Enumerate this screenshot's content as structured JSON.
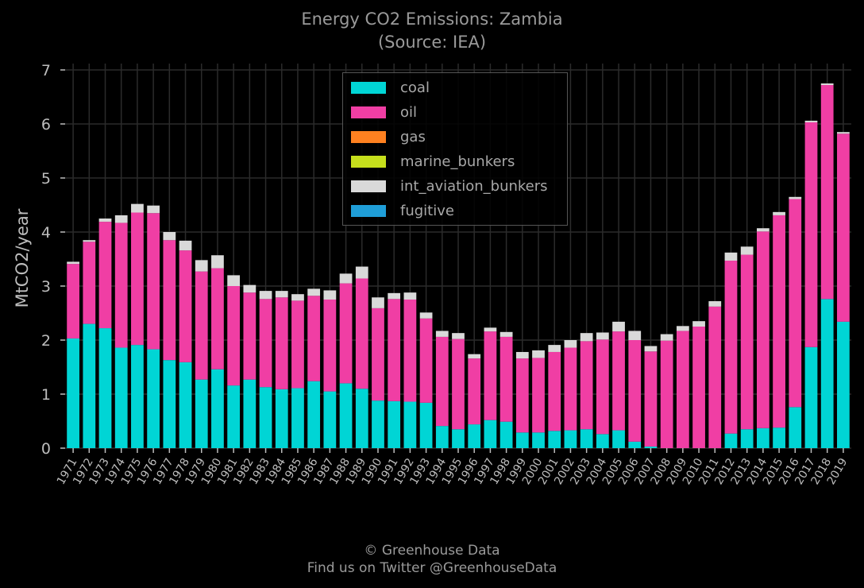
{
  "title_line1": "Energy CO2 Emissions: Zambia",
  "title_line2": "(Source: IEA)",
  "footer_line1": "© Greenhouse Data",
  "footer_line2": "Find us on Twitter @GreenhouseData",
  "colors": {
    "coal": "#00d5d5",
    "oil": "#f03ea4",
    "gas": "#ff8120",
    "marine_bunkers": "#c6df1c",
    "int_aviation_bunkers": "#d9d9d9",
    "fugitive": "#1f9ed8",
    "grid": "#2b2b2b",
    "axis_text": "#bdbdbd"
  },
  "chart_data": {
    "type": "bar",
    "stacked": true,
    "ylabel": "MtCO2/year",
    "ylim": [
      0,
      7
    ],
    "yticks": [
      0,
      1,
      2,
      3,
      4,
      5,
      6,
      7
    ],
    "grid": true,
    "legend_position": "top-center",
    "categories": [
      "1971",
      "1972",
      "1973",
      "1974",
      "1975",
      "1976",
      "1977",
      "1978",
      "1979",
      "1980",
      "1981",
      "1982",
      "1983",
      "1984",
      "1985",
      "1986",
      "1987",
      "1988",
      "1989",
      "1990",
      "1991",
      "1992",
      "1993",
      "1994",
      "1995",
      "1996",
      "1997",
      "1998",
      "1999",
      "2000",
      "2001",
      "2002",
      "2003",
      "2004",
      "2005",
      "2006",
      "2007",
      "2008",
      "2009",
      "2010",
      "2011",
      "2012",
      "2013",
      "2014",
      "2015",
      "2016",
      "2017",
      "2018",
      "2019"
    ],
    "series": [
      {
        "name": "coal",
        "values": [
          2.03,
          2.3,
          2.22,
          1.86,
          1.91,
          1.83,
          1.63,
          1.59,
          1.27,
          1.46,
          1.16,
          1.27,
          1.13,
          1.09,
          1.11,
          1.24,
          1.05,
          1.2,
          1.1,
          0.88,
          0.87,
          0.86,
          0.84,
          0.41,
          0.35,
          0.44,
          0.52,
          0.49,
          0.29,
          0.29,
          0.32,
          0.33,
          0.35,
          0.26,
          0.33,
          0.12,
          0.03,
          0.0,
          0.0,
          0.0,
          0.0,
          0.27,
          0.35,
          0.37,
          0.38,
          0.76,
          1.87,
          2.76,
          2.34
        ]
      },
      {
        "name": "oil",
        "values": [
          1.38,
          1.52,
          1.97,
          2.31,
          2.45,
          2.52,
          2.22,
          2.07,
          2.0,
          1.87,
          1.84,
          1.61,
          1.63,
          1.7,
          1.62,
          1.58,
          1.7,
          1.85,
          2.04,
          1.71,
          1.89,
          1.89,
          1.56,
          1.65,
          1.67,
          1.22,
          1.64,
          1.57,
          1.37,
          1.38,
          1.46,
          1.53,
          1.63,
          1.75,
          1.83,
          1.88,
          1.76,
          1.99,
          2.17,
          2.25,
          2.62,
          3.2,
          3.23,
          3.64,
          3.93,
          3.85,
          4.16,
          3.96,
          3.48
        ]
      },
      {
        "name": "gas",
        "values": [
          0,
          0,
          0,
          0,
          0,
          0,
          0,
          0,
          0,
          0,
          0,
          0,
          0,
          0,
          0,
          0,
          0,
          0,
          0,
          0,
          0,
          0,
          0,
          0,
          0,
          0,
          0,
          0,
          0,
          0,
          0,
          0,
          0,
          0,
          0,
          0,
          0,
          0,
          0,
          0,
          0,
          0,
          0,
          0,
          0,
          0,
          0,
          0,
          0
        ]
      },
      {
        "name": "marine_bunkers",
        "values": [
          0,
          0,
          0,
          0,
          0,
          0,
          0,
          0,
          0,
          0,
          0,
          0,
          0,
          0,
          0,
          0,
          0,
          0,
          0,
          0,
          0,
          0,
          0,
          0,
          0,
          0,
          0,
          0,
          0,
          0,
          0,
          0,
          0,
          0,
          0,
          0,
          0,
          0,
          0,
          0,
          0,
          0,
          0,
          0,
          0,
          0,
          0,
          0,
          0
        ]
      },
      {
        "name": "int_aviation_bunkers",
        "values": [
          0.04,
          0.03,
          0.06,
          0.14,
          0.16,
          0.14,
          0.15,
          0.18,
          0.21,
          0.24,
          0.2,
          0.14,
          0.15,
          0.12,
          0.12,
          0.13,
          0.17,
          0.18,
          0.22,
          0.2,
          0.11,
          0.13,
          0.11,
          0.11,
          0.11,
          0.08,
          0.07,
          0.09,
          0.12,
          0.14,
          0.13,
          0.14,
          0.15,
          0.13,
          0.18,
          0.17,
          0.1,
          0.12,
          0.09,
          0.1,
          0.1,
          0.15,
          0.15,
          0.06,
          0.06,
          0.04,
          0.03,
          0.03,
          0.03
        ]
      },
      {
        "name": "fugitive",
        "values": [
          0,
          0,
          0,
          0,
          0,
          0,
          0,
          0,
          0,
          0,
          0,
          0,
          0,
          0,
          0,
          0,
          0,
          0,
          0,
          0,
          0,
          0,
          0,
          0,
          0,
          0,
          0,
          0,
          0,
          0,
          0,
          0,
          0,
          0,
          0,
          0,
          0,
          0,
          0,
          0,
          0,
          0,
          0,
          0,
          0,
          0,
          0,
          0,
          0
        ]
      }
    ]
  }
}
